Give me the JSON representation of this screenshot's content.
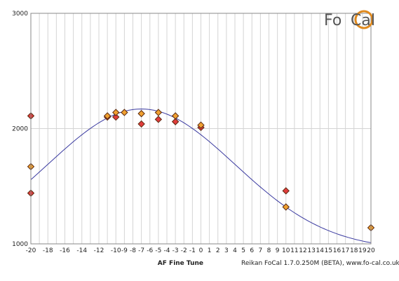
{
  "chart_data": {
    "type": "scatter",
    "title": "",
    "xlabel": "AF Fine Tune",
    "ylabel": "",
    "xlim": [
      -20,
      20
    ],
    "ylim": [
      1000,
      3000
    ],
    "x_ticks": [
      -20,
      -18,
      -16,
      -14,
      -12,
      -10,
      -9,
      -8,
      -7,
      -6,
      -5,
      -4,
      -3,
      -2,
      -1,
      0,
      1,
      2,
      3,
      4,
      5,
      6,
      7,
      8,
      9,
      10,
      11,
      12,
      13,
      14,
      15,
      16,
      17,
      18,
      19,
      20
    ],
    "x_tick_labels": [
      "-20",
      "-18",
      "-16",
      "-14",
      "-12",
      "-10",
      "-9",
      "-8",
      "-7",
      "-6",
      "-5",
      "-4",
      "-3",
      "-2",
      "-1",
      "0",
      "1",
      "2",
      "3",
      "4",
      "5",
      "6",
      "7",
      "8",
      "9",
      "10",
      "11",
      "12",
      "13",
      "14",
      "15",
      "16",
      "17",
      "18",
      "19",
      "20"
    ],
    "y_ticks": [
      1000,
      2000,
      3000
    ],
    "y_tick_labels": [
      "1000",
      "2000",
      "3000"
    ],
    "grid": true,
    "series": [
      {
        "marker": "diamond",
        "color": "#e03c3c",
        "points": [
          {
            "x": -20,
            "y": 2110
          },
          {
            "x": -20,
            "y": 1440
          },
          {
            "x": -11,
            "y": 2100
          },
          {
            "x": -10,
            "y": 2100
          },
          {
            "x": -7,
            "y": 2040
          },
          {
            "x": -5,
            "y": 2080
          },
          {
            "x": -3,
            "y": 2060
          },
          {
            "x": 0,
            "y": 2010
          },
          {
            "x": 10,
            "y": 1460
          }
        ]
      },
      {
        "marker": "diamond",
        "color": "#f0a030",
        "points": [
          {
            "x": -20,
            "y": 1670
          },
          {
            "x": -11,
            "y": 2110
          },
          {
            "x": -10,
            "y": 2140
          },
          {
            "x": -9,
            "y": 2140
          },
          {
            "x": -7,
            "y": 2130
          },
          {
            "x": -5,
            "y": 2140
          },
          {
            "x": -3,
            "y": 2110
          },
          {
            "x": 0,
            "y": 2030
          },
          {
            "x": 10,
            "y": 1320
          },
          {
            "x": 20,
            "y": 1140
          }
        ]
      },
      {
        "type": "line",
        "color": "#3a3aa0",
        "fit": {
          "peak_x": -7,
          "peak_y": 2170,
          "spread": 11,
          "baseline": 950
        }
      }
    ]
  },
  "credit": "Reikan FoCal 1.7.0.250M (BETA), www.fo-cal.co.uk",
  "logo": {
    "part1": "Fo",
    "part2": "Cal",
    "color": "#555555",
    "ring_color": "#e08a1e"
  }
}
